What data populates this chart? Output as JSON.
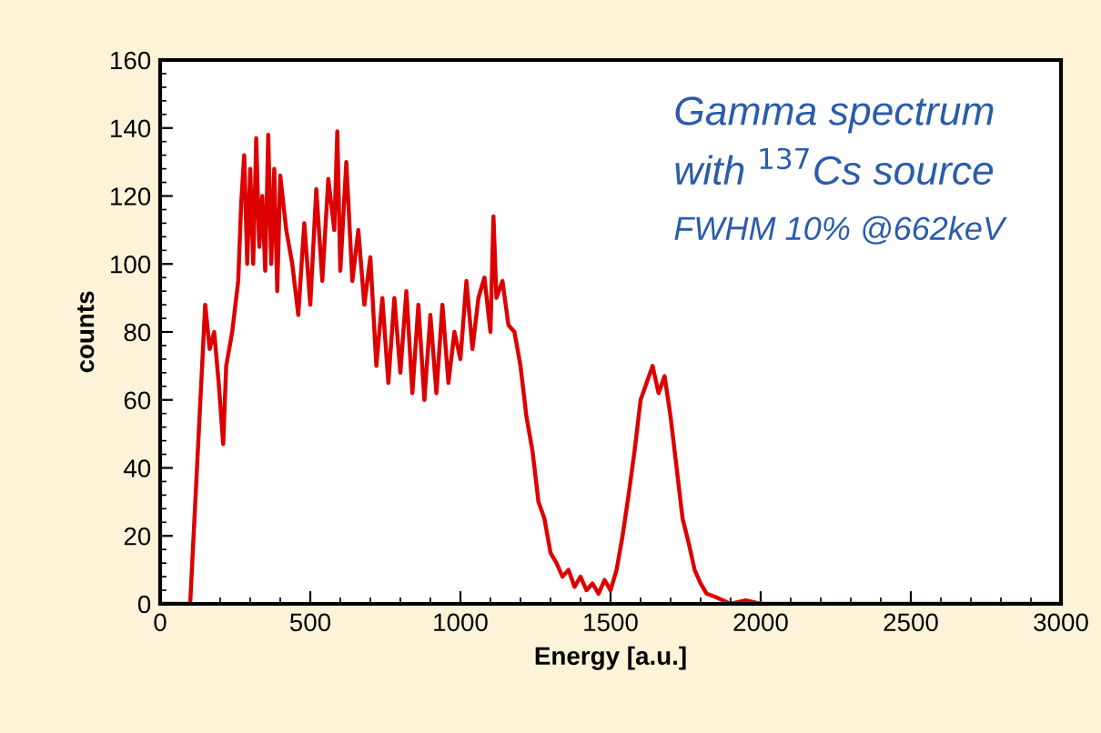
{
  "chart_data": {
    "type": "line",
    "xlabel": "Energy [a.u.]",
    "ylabel": "counts",
    "annotations": [
      "Gamma spectrum",
      "with $^{137}$Cs source",
      "FWHM 10% @662keV"
    ],
    "xlim": [
      0,
      3000
    ],
    "xticks": [
      0,
      500,
      1000,
      1500,
      2000,
      2500,
      3000
    ],
    "ylim": [
      0,
      160
    ],
    "yticks": [
      0,
      20,
      40,
      60,
      80,
      100,
      120,
      140,
      160
    ],
    "grid": false,
    "marker": "none",
    "line_style": "solid",
    "series": [
      {
        "color": "#dd0000",
        "x": [
          0,
          100,
          150,
          165,
          180,
          195,
          210,
          220,
          240,
          260,
          270,
          280,
          290,
          300,
          310,
          320,
          330,
          340,
          350,
          360,
          370,
          380,
          390,
          400,
          420,
          440,
          460,
          480,
          500,
          520,
          540,
          560,
          580,
          590,
          600,
          620,
          640,
          660,
          680,
          700,
          720,
          740,
          760,
          780,
          800,
          820,
          840,
          860,
          880,
          900,
          920,
          940,
          960,
          980,
          1000,
          1020,
          1040,
          1060,
          1080,
          1100,
          1110,
          1120,
          1140,
          1160,
          1180,
          1200,
          1220,
          1240,
          1260,
          1280,
          1300,
          1320,
          1340,
          1360,
          1380,
          1400,
          1420,
          1440,
          1460,
          1480,
          1500,
          1520,
          1540,
          1560,
          1580,
          1600,
          1620,
          1640,
          1660,
          1680,
          1700,
          1720,
          1740,
          1760,
          1780,
          1800,
          1820,
          1850,
          1900,
          1950,
          2000,
          3000
        ],
        "values": [
          0,
          0,
          88,
          75,
          80,
          65,
          47,
          70,
          80,
          95,
          118,
          132,
          100,
          128,
          100,
          137,
          105,
          120,
          98,
          138,
          100,
          128,
          92,
          126,
          110,
          100,
          85,
          112,
          88,
          122,
          95,
          125,
          110,
          139,
          98,
          130,
          95,
          110,
          88,
          102,
          70,
          90,
          65,
          90,
          68,
          92,
          62,
          88,
          60,
          85,
          62,
          88,
          65,
          80,
          72,
          95,
          75,
          90,
          96,
          80,
          114,
          90,
          95,
          82,
          80,
          70,
          55,
          45,
          30,
          25,
          15,
          12,
          8,
          10,
          5,
          8,
          4,
          6,
          3,
          7,
          4,
          10,
          20,
          32,
          45,
          60,
          65,
          70,
          62,
          67,
          55,
          40,
          25,
          18,
          10,
          6,
          3,
          2,
          0,
          1,
          0,
          0
        ]
      }
    ]
  }
}
